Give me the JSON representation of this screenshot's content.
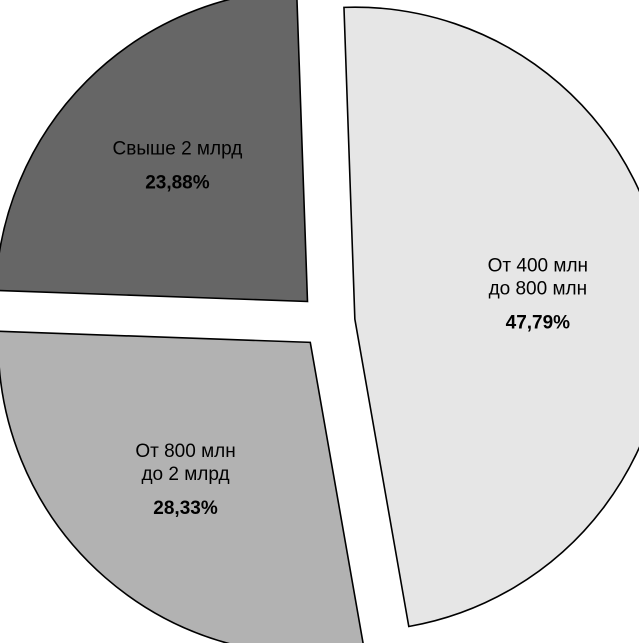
{
  "chart_data": {
    "type": "pie",
    "slices": [
      {
        "label_lines": [
          "От 400 млн",
          "до 800 млн"
        ],
        "value_label": "47,79%",
        "value": 47.79,
        "color": "#e6e6e6"
      },
      {
        "label_lines": [
          "От 800 млн",
          "до 2 млрд"
        ],
        "value_label": "28,33%",
        "value": 28.33,
        "color": "#b2b2b2"
      },
      {
        "label_lines": [
          "Свыше 2 млрд"
        ],
        "value_label": "23,88%",
        "value": 23.88,
        "color": "#666666"
      }
    ],
    "exploded": true,
    "legend": "none"
  }
}
